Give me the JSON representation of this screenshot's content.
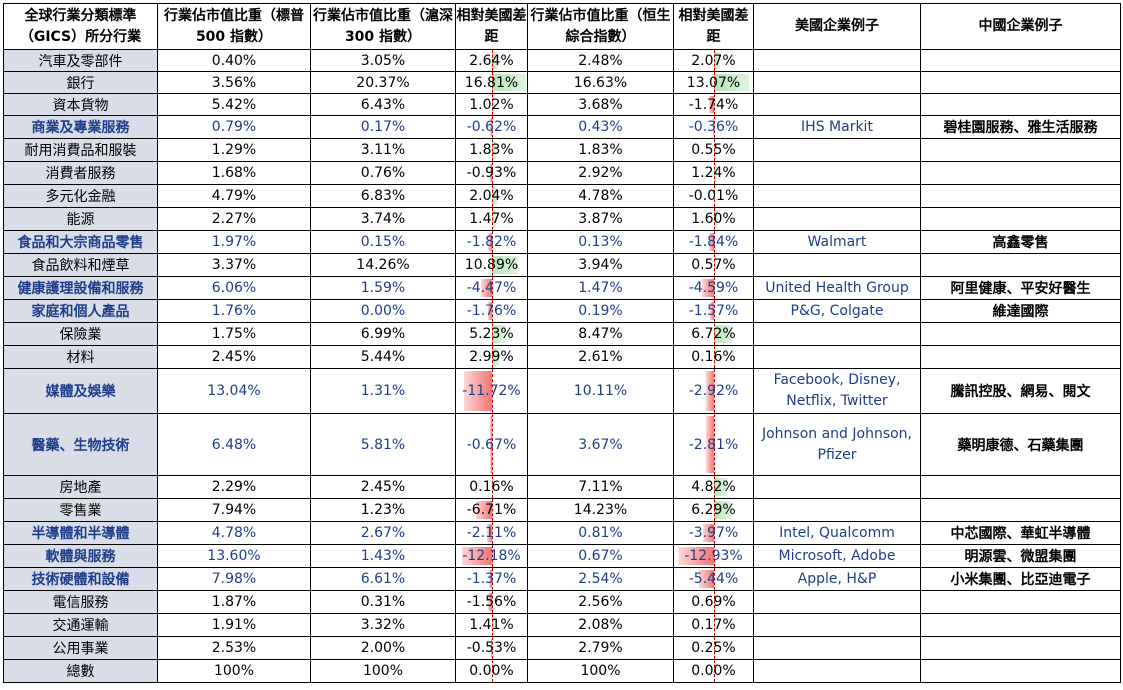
{
  "headers": {
    "category": "全球行業分類標準（GICS）所分行業",
    "sp500": "行業佔市值比重（標普 500 指數）",
    "csi300": "行業佔市值比重（滬深 300 指數）",
    "diff_csi": "相對美國差距",
    "hsci": "行業佔市值比重（恒生綜合指數）",
    "diff_hsci": "相對美國差距",
    "us_examples": "美國企業例子",
    "cn_examples": "中國企業例子"
  },
  "colors": {
    "category_bg": "#d9dde8",
    "highlight_text": "#1f3d8a",
    "positive_bar": "#b8e4b9",
    "negative_bar": "#f37373",
    "axis_line": "#c00000"
  },
  "rows": [
    {
      "category": "汽車及零部件",
      "sp500": "0.40%",
      "csi300": "3.05%",
      "diff_csi": "2.64%",
      "diff_csi_value": 2.64,
      "hsci": "2.48%",
      "diff_hsci": "2.07%",
      "diff_hsci_value": 2.07,
      "us": "",
      "cn": "",
      "highlight": false
    },
    {
      "category": "銀行",
      "sp500": "3.56%",
      "csi300": "20.37%",
      "diff_csi": "16.81%",
      "diff_csi_value": 16.81,
      "hsci": "16.63%",
      "diff_hsci": "13.07%",
      "diff_hsci_value": 13.07,
      "us": "",
      "cn": "",
      "highlight": false
    },
    {
      "category": "資本貨物",
      "sp500": "5.42%",
      "csi300": "6.43%",
      "diff_csi": "1.02%",
      "diff_csi_value": 1.02,
      "hsci": "3.68%",
      "diff_hsci": "-1.74%",
      "diff_hsci_value": -1.74,
      "us": "",
      "cn": "",
      "highlight": false
    },
    {
      "category": "商業及專業服務",
      "sp500": "0.79%",
      "csi300": "0.17%",
      "diff_csi": "-0.62%",
      "diff_csi_value": -0.62,
      "hsci": "0.43%",
      "diff_hsci": "-0.36%",
      "diff_hsci_value": -0.36,
      "us": "IHS Markit",
      "cn": "碧桂園服務、雅生活服務",
      "highlight": true
    },
    {
      "category": "耐用消費品和服裝",
      "sp500": "1.29%",
      "csi300": "3.11%",
      "diff_csi": "1.83%",
      "diff_csi_value": 1.83,
      "hsci": "1.83%",
      "diff_hsci": "0.55%",
      "diff_hsci_value": 0.55,
      "us": "",
      "cn": "",
      "highlight": false
    },
    {
      "category": "消費者服務",
      "sp500": "1.68%",
      "csi300": "0.76%",
      "diff_csi": "-0.93%",
      "diff_csi_value": -0.93,
      "hsci": "2.92%",
      "diff_hsci": "1.24%",
      "diff_hsci_value": 1.24,
      "us": "",
      "cn": "",
      "highlight": false
    },
    {
      "category": "多元化金融",
      "sp500": "4.79%",
      "csi300": "6.83%",
      "diff_csi": "2.04%",
      "diff_csi_value": 2.04,
      "hsci": "4.78%",
      "diff_hsci": "-0.01%",
      "diff_hsci_value": -0.01,
      "us": "",
      "cn": "",
      "highlight": false
    },
    {
      "category": "能源",
      "sp500": "2.27%",
      "csi300": "3.74%",
      "diff_csi": "1.47%",
      "diff_csi_value": 1.47,
      "hsci": "3.87%",
      "diff_hsci": "1.60%",
      "diff_hsci_value": 1.6,
      "us": "",
      "cn": "",
      "highlight": false
    },
    {
      "category": "食品和大宗商品零售",
      "sp500": "1.97%",
      "csi300": "0.15%",
      "diff_csi": "-1.82%",
      "diff_csi_value": -1.82,
      "hsci": "0.13%",
      "diff_hsci": "-1.84%",
      "diff_hsci_value": -1.84,
      "us": "Walmart",
      "cn": "高鑫零售",
      "highlight": true
    },
    {
      "category": "食品飲料和煙草",
      "sp500": "3.37%",
      "csi300": "14.26%",
      "diff_csi": "10.89%",
      "diff_csi_value": 10.89,
      "hsci": "3.94%",
      "diff_hsci": "0.57%",
      "diff_hsci_value": 0.57,
      "us": "",
      "cn": "",
      "highlight": false
    },
    {
      "category": "健康護理設備和服務",
      "sp500": "6.06%",
      "csi300": "1.59%",
      "diff_csi": "-4.47%",
      "diff_csi_value": -4.47,
      "hsci": "1.47%",
      "diff_hsci": "-4.59%",
      "diff_hsci_value": -4.59,
      "us": "United Health Group",
      "cn": "阿里健康、平安好醫生",
      "highlight": true
    },
    {
      "category": "家庭和個人產品",
      "sp500": "1.76%",
      "csi300": "0.00%",
      "diff_csi": "-1.76%",
      "diff_csi_value": -1.76,
      "hsci": "0.19%",
      "diff_hsci": "-1.57%",
      "diff_hsci_value": -1.57,
      "us": "P&G, Colgate",
      "cn": "維達國際",
      "highlight": true
    },
    {
      "category": "保險業",
      "sp500": "1.75%",
      "csi300": "6.99%",
      "diff_csi": "5.23%",
      "diff_csi_value": 5.23,
      "hsci": "8.47%",
      "diff_hsci": "6.72%",
      "diff_hsci_value": 6.72,
      "us": "",
      "cn": "",
      "highlight": false
    },
    {
      "category": "材料",
      "sp500": "2.45%",
      "csi300": "5.44%",
      "diff_csi": "2.99%",
      "diff_csi_value": 2.99,
      "hsci": "2.61%",
      "diff_hsci": "0.16%",
      "diff_hsci_value": 0.16,
      "us": "",
      "cn": "",
      "highlight": false
    },
    {
      "category": "媒體及娛樂",
      "sp500": "13.04%",
      "csi300": "1.31%",
      "diff_csi": "-11.72%",
      "diff_csi_value": -11.72,
      "hsci": "10.11%",
      "diff_hsci": "-2.92%",
      "diff_hsci_value": -2.92,
      "us": "Facebook, Disney, Netflix, Twitter",
      "cn": "騰訊控股、網易、閱文",
      "highlight": true
    },
    {
      "category": "醫藥、生物技術",
      "sp500": "6.48%",
      "csi300": "5.81%",
      "diff_csi": "-0.67%",
      "diff_csi_value": -0.67,
      "hsci": "3.67%",
      "diff_hsci": "-2.81%",
      "diff_hsci_value": -2.81,
      "us": "Johnson and Johnson, Pfizer",
      "cn": "藥明康德、石藥集團",
      "highlight": true
    },
    {
      "category": "房地產",
      "sp500": "2.29%",
      "csi300": "2.45%",
      "diff_csi": "0.16%",
      "diff_csi_value": 0.16,
      "hsci": "7.11%",
      "diff_hsci": "4.82%",
      "diff_hsci_value": 4.82,
      "us": "",
      "cn": "",
      "highlight": false
    },
    {
      "category": "零售業",
      "sp500": "7.94%",
      "csi300": "1.23%",
      "diff_csi": "-6.71%",
      "diff_csi_value": -6.71,
      "hsci": "14.23%",
      "diff_hsci": "6.29%",
      "diff_hsci_value": 6.29,
      "us": "",
      "cn": "",
      "highlight": false
    },
    {
      "category": "半導體和半導體",
      "sp500": "4.78%",
      "csi300": "2.67%",
      "diff_csi": "-2.11%",
      "diff_csi_value": -2.11,
      "hsci": "0.81%",
      "diff_hsci": "-3.97%",
      "diff_hsci_value": -3.97,
      "us": "Intel, Qualcomm",
      "cn": "中芯國際、華虹半導體",
      "highlight": true
    },
    {
      "category": "軟體與服務",
      "sp500": "13.60%",
      "csi300": "1.43%",
      "diff_csi": "-12.18%",
      "diff_csi_value": -12.18,
      "hsci": "0.67%",
      "diff_hsci": "-12.93%",
      "diff_hsci_value": -12.93,
      "us": "Microsoft, Adobe",
      "cn": "明源雲、微盟集團",
      "highlight": true
    },
    {
      "category": "技術硬體和設備",
      "sp500": "7.98%",
      "csi300": "6.61%",
      "diff_csi": "-1.37%",
      "diff_csi_value": -1.37,
      "hsci": "2.54%",
      "diff_hsci": "-5.44%",
      "diff_hsci_value": -5.44,
      "us": "Apple, H&P",
      "cn": "小米集團、比亞迪電子",
      "highlight": true
    },
    {
      "category": "電信服務",
      "sp500": "1.87%",
      "csi300": "0.31%",
      "diff_csi": "-1.56%",
      "diff_csi_value": -1.56,
      "hsci": "2.56%",
      "diff_hsci": "0.69%",
      "diff_hsci_value": 0.69,
      "us": "",
      "cn": "",
      "highlight": false
    },
    {
      "category": "交通運輸",
      "sp500": "1.91%",
      "csi300": "3.32%",
      "diff_csi": "1.41%",
      "diff_csi_value": 1.41,
      "hsci": "2.08%",
      "diff_hsci": "0.17%",
      "diff_hsci_value": 0.17,
      "us": "",
      "cn": "",
      "highlight": false
    },
    {
      "category": "公用事業",
      "sp500": "2.53%",
      "csi300": "2.00%",
      "diff_csi": "-0.53%",
      "diff_csi_value": -0.53,
      "hsci": "2.79%",
      "diff_hsci": "0.25%",
      "diff_hsci_value": 0.25,
      "us": "",
      "cn": "",
      "highlight": false
    },
    {
      "category": "總數",
      "sp500": "100%",
      "csi300": "100%",
      "diff_csi": "0.00%",
      "diff_csi_value": 0,
      "hsci": "100%",
      "diff_hsci": "0.00%",
      "diff_hsci_value": 0,
      "us": "",
      "cn": "",
      "highlight": false
    }
  ]
}
